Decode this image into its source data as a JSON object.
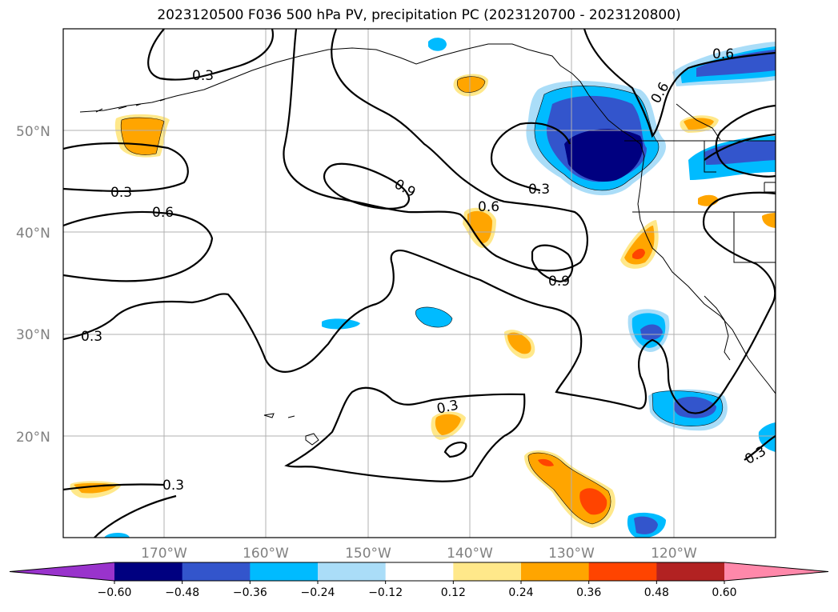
{
  "title": "2023120500 F036 500 hPa PV, precipitation PC (2023120700 - 2023120800)",
  "map": {
    "lat_ticks": [
      "50°N",
      "40°N",
      "30°N",
      "20°N"
    ],
    "lon_ticks": [
      "170°W",
      "160°W",
      "150°W",
      "140°W",
      "130°W",
      "120°W"
    ],
    "lat_range": [
      10,
      60
    ],
    "lon_range": [
      -180,
      -110
    ],
    "grid": true
  },
  "colorbar": {
    "ticks": [
      "−0.60",
      "−0.48",
      "−0.36",
      "−0.24",
      "−0.12",
      "0.12",
      "0.24",
      "0.36",
      "0.48",
      "0.60"
    ],
    "colors": [
      "#9933cc",
      "#000080",
      "#3355cc",
      "#00bbff",
      "#aaddf8",
      "#ffffff",
      "#ffe88a",
      "#ffa500",
      "#ff4400",
      "#b22222",
      "#ff88aa"
    ],
    "extend": "both"
  },
  "contour_labels": [
    {
      "text": "0.3"
    },
    {
      "text": "0.3"
    },
    {
      "text": "0.6"
    },
    {
      "text": "0.3"
    },
    {
      "text": "0.9"
    },
    {
      "text": "0.6"
    },
    {
      "text": "0.9"
    },
    {
      "text": "0.3"
    },
    {
      "text": "0.3"
    },
    {
      "text": "0.6"
    },
    {
      "text": "0.6"
    },
    {
      "text": "0.3"
    },
    {
      "text": "0.3"
    }
  ],
  "chart_data": {
    "type": "heatmap",
    "title": "2023120500 F036 500 hPa PV, precipitation PC (2023120700 - 2023120800)",
    "contour_field": "500 hPa PV",
    "contour_levels": [
      0.3,
      0.6,
      0.9
    ],
    "shaded_field": "precipitation PC",
    "shading_levels": [
      -0.6,
      -0.48,
      -0.36,
      -0.24,
      -0.12,
      0.12,
      0.24,
      0.36,
      0.48,
      0.6
    ],
    "xlim": [
      -180,
      -110
    ],
    "ylim": [
      10,
      60
    ]
  }
}
